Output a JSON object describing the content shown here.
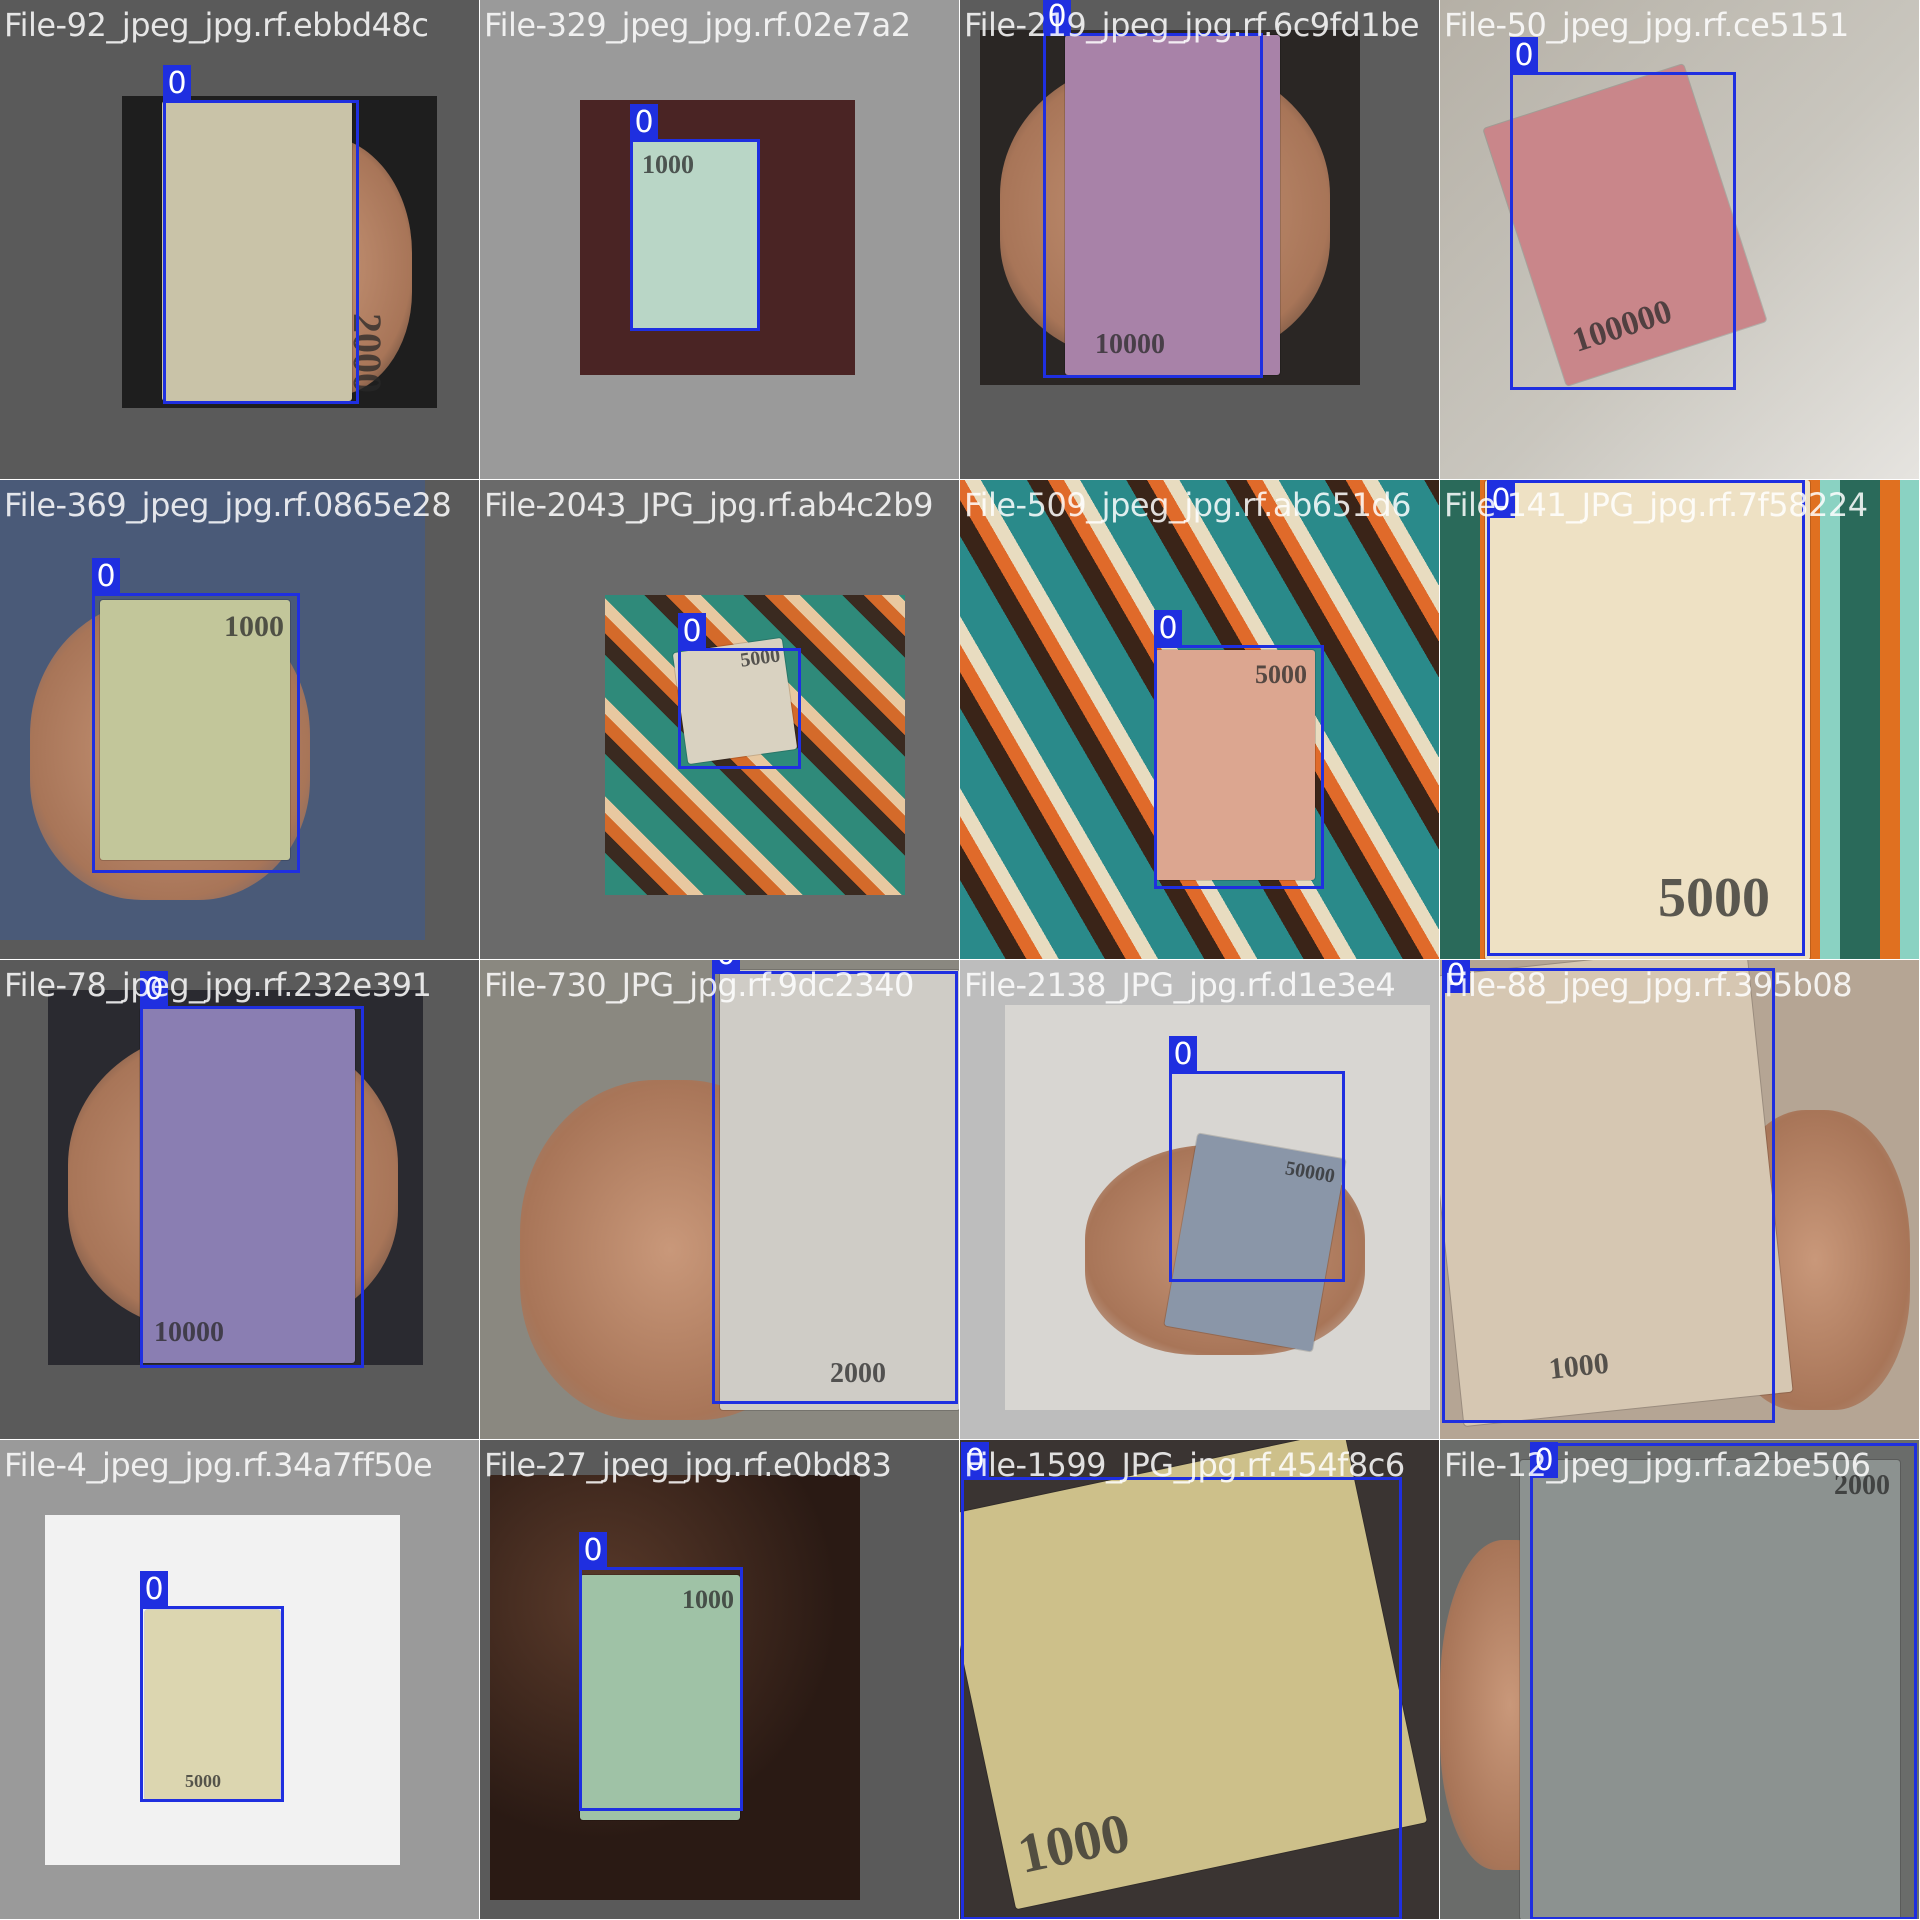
{
  "colors": {
    "box": "#1f2fe0",
    "label_text": "#ffffff",
    "filename_text": "#ffffff"
  },
  "tiles": [
    {
      "filename": "File-92_jpeg_jpg.rf.ebbd48c",
      "overlap": "File-329_jpeg_jpg.rf.02e7a2",
      "class_label": "0",
      "note_value": "2000",
      "note_color": "#c9c3a8"
    },
    {
      "filename": "File-329_jpeg_jpg.rf.02e7a2",
      "overlap": "",
      "class_label": "0",
      "note_value": "1000",
      "note_color": "#b9d6c6"
    },
    {
      "filename": "File-219_jpeg_jpg.rf.6c9fd1be",
      "overlap": "File-50_jpeg_jpg",
      "class_label": "0",
      "note_value": "10000",
      "note_color": "#a882a8"
    },
    {
      "filename": "File-50_jpeg_jpg.rf.ce5151",
      "overlap": "",
      "class_label": "0",
      "note_value": "100000",
      "note_color": "#c9868a"
    },
    {
      "filename": "File-369_jpeg_jpg.rf.0865e28",
      "overlap": "File-2043_JPG",
      "class_label": "0",
      "note_value": "1000",
      "note_color": "#c2c69a"
    },
    {
      "filename": "File-2043_JPG_jpg.rf.ab4c2b9",
      "overlap": "File-509_jpeg",
      "class_label": "0",
      "note_value": "5000",
      "note_color": "#d9d2c1"
    },
    {
      "filename": "File-509_jpeg_jpg.rf.ab651d6",
      "overlap": "File-141_JPG",
      "class_label": "0",
      "note_value": "5000",
      "note_color": "#dca690"
    },
    {
      "filename": "File-141_JPG_jpg.rf.7f58224",
      "overlap": "",
      "class_label": "0",
      "note_value": "5000",
      "note_color": "#eee1c4"
    },
    {
      "filename": "File-78_jpeg_jpg.rf.232e391",
      "overlap": "File-730_JPG",
      "class_label": "0",
      "note_value": "10000",
      "note_color": "#8a7eb2"
    },
    {
      "filename": "File-730_JPG_jpg.rf.9dc2340",
      "overlap": "File-2138_JPG",
      "class_label": "0",
      "note_value": "2000",
      "note_color": "#cfccc6"
    },
    {
      "filename": "File-2138_JPG_jpg.rf.d1e3e4",
      "overlap": "File-88_jpeg",
      "class_label": "0",
      "note_value": "50000",
      "note_color": "#8a96a8"
    },
    {
      "filename": "File-88_jpeg_jpg.rf.395b08",
      "overlap": "",
      "class_label": "0",
      "note_value": "1000",
      "note_color": "#d6c7b2"
    },
    {
      "filename": "File-4_jpeg_jpg.rf.34a7ff50e",
      "overlap": "File-27_jpeg",
      "class_label": "0",
      "note_value": "5000",
      "note_color": "#dcd6b0"
    },
    {
      "filename": "File-27_jpeg_jpg.rf.e0bd83",
      "overlap": "File-1599_JPG",
      "class_label": "0",
      "note_value": "1000",
      "note_color": "#9fc2a6"
    },
    {
      "filename": "File-1599_JPG_jpg.rf.454f8c6",
      "overlap": "File-12_jpeg",
      "class_label": "0",
      "note_value": "1000",
      "note_color": "#cdc08a"
    },
    {
      "filename": "File-12_jpeg_jpg.rf.a2be506",
      "overlap": "",
      "class_label": "0",
      "note_value": "2000",
      "note_color": "#8c9290"
    }
  ]
}
